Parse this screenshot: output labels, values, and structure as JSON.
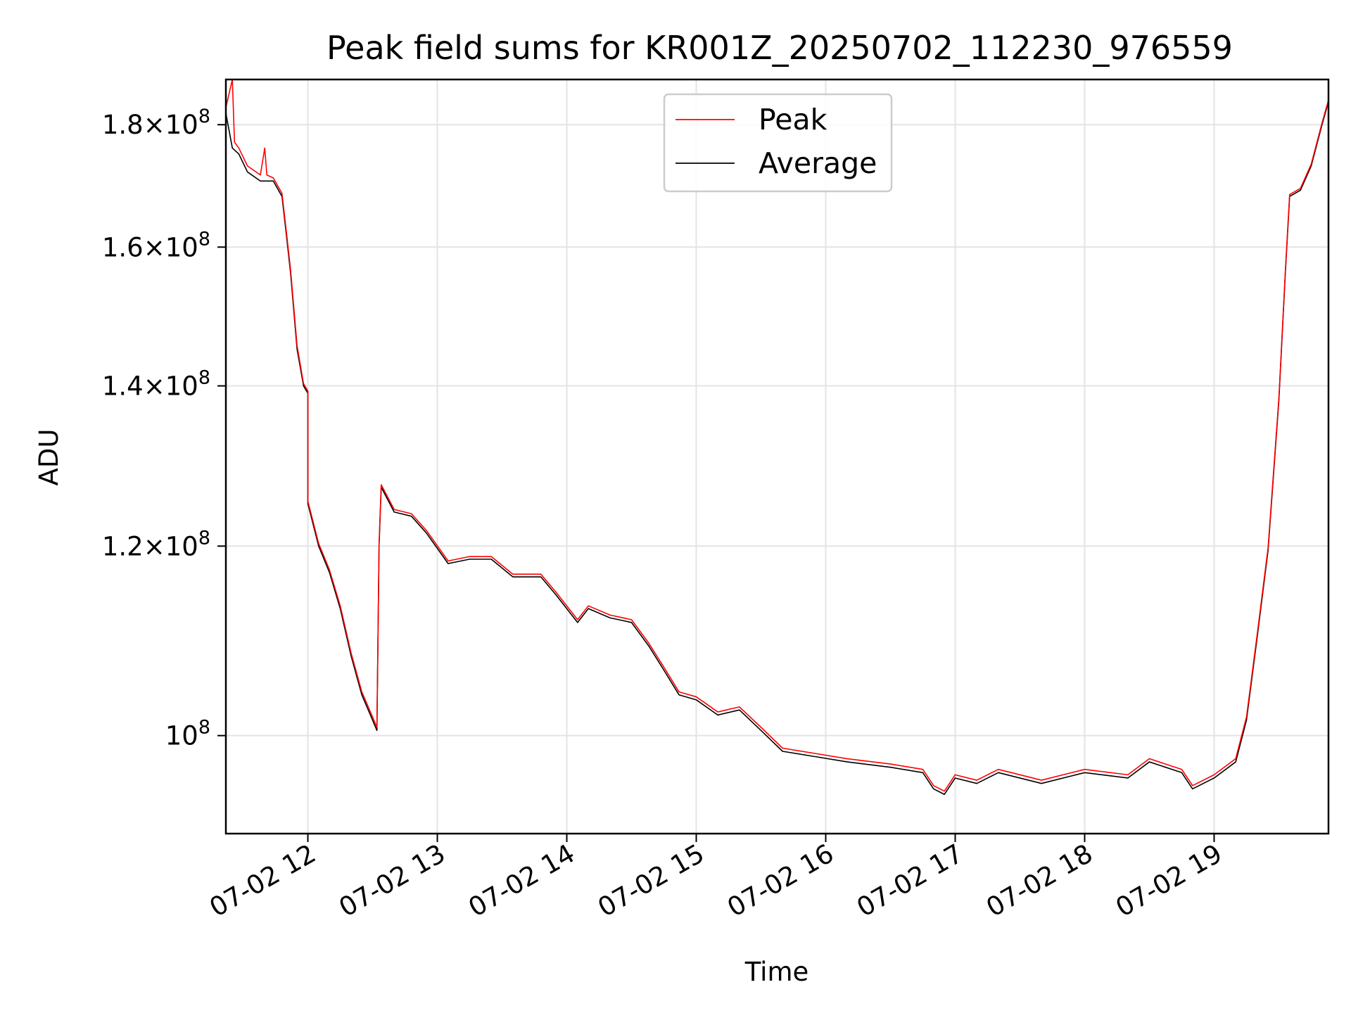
{
  "chart_data": {
    "type": "line",
    "title": "Peak field sums for KR001Z_20250702_112230_976559",
    "xlabel": "Time",
    "ylabel": "ADU",
    "yscale": "log",
    "xlim": [
      "2025-07-02 11:22",
      "2025-07-02 19:53"
    ],
    "ylim": [
      91000000,
      188000000
    ],
    "grid": true,
    "legend_position": "top-center",
    "x_ticks": [
      {
        "value": "2025-07-02 12:00",
        "label": "07-02 12"
      },
      {
        "value": "2025-07-02 13:00",
        "label": "07-02 13"
      },
      {
        "value": "2025-07-02 14:00",
        "label": "07-02 14"
      },
      {
        "value": "2025-07-02 15:00",
        "label": "07-02 15"
      },
      {
        "value": "2025-07-02 16:00",
        "label": "07-02 16"
      },
      {
        "value": "2025-07-02 17:00",
        "label": "07-02 17"
      },
      {
        "value": "2025-07-02 18:00",
        "label": "07-02 18"
      },
      {
        "value": "2025-07-02 19:00",
        "label": "07-02 19"
      }
    ],
    "y_ticks": [
      {
        "value": 100000000,
        "mantissa": "",
        "exponent": "8"
      },
      {
        "value": 120000000,
        "mantissa": "1.2",
        "exponent": "8"
      },
      {
        "value": 140000000,
        "mantissa": "1.4",
        "exponent": "8"
      },
      {
        "value": 160000000,
        "mantissa": "1.6",
        "exponent": "8"
      },
      {
        "value": 180000000,
        "mantissa": "1.8",
        "exponent": "8"
      }
    ],
    "series": [
      {
        "name": "Average",
        "color": "#000000",
        "points": [
          [
            "2025-07-02 11:22",
            182000000
          ],
          [
            "2025-07-02 11:25",
            176000000
          ],
          [
            "2025-07-02 11:28",
            175000000
          ],
          [
            "2025-07-02 11:32",
            172000000
          ],
          [
            "2025-07-02 11:38",
            170500000
          ],
          [
            "2025-07-02 11:44",
            170500000
          ],
          [
            "2025-07-02 11:48",
            168000000
          ],
          [
            "2025-07-02 11:50",
            162000000
          ],
          [
            "2025-07-02 11:52",
            156000000
          ],
          [
            "2025-07-02 11:55",
            145000000
          ],
          [
            "2025-07-02 11:58",
            140000000
          ],
          [
            "2025-07-02 12:00",
            139000000
          ],
          [
            "2025-07-02 12:00",
            125000000
          ],
          [
            "2025-07-02 12:05",
            120000000
          ],
          [
            "2025-07-02 12:10",
            117000000
          ],
          [
            "2025-07-02 12:15",
            113000000
          ],
          [
            "2025-07-02 12:20",
            108000000
          ],
          [
            "2025-07-02 12:25",
            104000000
          ],
          [
            "2025-07-02 12:30",
            101500000
          ],
          [
            "2025-07-02 12:32",
            100500000
          ],
          [
            "2025-07-02 12:33",
            120000000
          ],
          [
            "2025-07-02 12:34",
            127000000
          ],
          [
            "2025-07-02 12:40",
            124000000
          ],
          [
            "2025-07-02 12:48",
            123500000
          ],
          [
            "2025-07-02 12:55",
            121500000
          ],
          [
            "2025-07-02 13:05",
            118000000
          ],
          [
            "2025-07-02 13:15",
            118500000
          ],
          [
            "2025-07-02 13:25",
            118500000
          ],
          [
            "2025-07-02 13:35",
            116500000
          ],
          [
            "2025-07-02 13:48",
            116500000
          ],
          [
            "2025-07-02 13:55",
            114500000
          ],
          [
            "2025-07-02 14:05",
            111500000
          ],
          [
            "2025-07-02 14:10",
            113000000
          ],
          [
            "2025-07-02 14:20",
            112000000
          ],
          [
            "2025-07-02 14:30",
            111500000
          ],
          [
            "2025-07-02 14:38",
            109000000
          ],
          [
            "2025-07-02 14:45",
            106500000
          ],
          [
            "2025-07-02 14:52",
            104000000
          ],
          [
            "2025-07-02 15:00",
            103500000
          ],
          [
            "2025-07-02 15:10",
            102000000
          ],
          [
            "2025-07-02 15:20",
            102500000
          ],
          [
            "2025-07-02 15:30",
            100500000
          ],
          [
            "2025-07-02 15:40",
            98500000
          ],
          [
            "2025-07-02 15:55",
            98000000
          ],
          [
            "2025-07-02 16:10",
            97500000
          ],
          [
            "2025-07-02 16:30",
            97000000
          ],
          [
            "2025-07-02 16:45",
            96500000
          ],
          [
            "2025-07-02 16:50",
            95000000
          ],
          [
            "2025-07-02 16:55",
            94500000
          ],
          [
            "2025-07-02 17:00",
            96000000
          ],
          [
            "2025-07-02 17:10",
            95500000
          ],
          [
            "2025-07-02 17:20",
            96500000
          ],
          [
            "2025-07-02 17:40",
            95500000
          ],
          [
            "2025-07-02 18:00",
            96500000
          ],
          [
            "2025-07-02 18:20",
            96000000
          ],
          [
            "2025-07-02 18:30",
            97500000
          ],
          [
            "2025-07-02 18:45",
            96500000
          ],
          [
            "2025-07-02 18:50",
            95000000
          ],
          [
            "2025-07-02 19:00",
            96000000
          ],
          [
            "2025-07-02 19:10",
            97500000
          ],
          [
            "2025-07-02 19:15",
            101500000
          ],
          [
            "2025-07-02 19:20",
            110000000
          ],
          [
            "2025-07-02 19:25",
            119500000
          ],
          [
            "2025-07-02 19:30",
            138000000
          ],
          [
            "2025-07-02 19:33",
            156000000
          ],
          [
            "2025-07-02 19:35",
            168000000
          ],
          [
            "2025-07-02 19:40",
            169000000
          ],
          [
            "2025-07-02 19:45",
            173000000
          ],
          [
            "2025-07-02 19:50",
            180000000
          ],
          [
            "2025-07-02 19:53",
            184000000
          ]
        ]
      },
      {
        "name": "Peak",
        "color": "#ff0000",
        "points": [
          [
            "2025-07-02 11:22",
            183000000
          ],
          [
            "2025-07-02 11:25",
            188000000
          ],
          [
            "2025-07-02 11:26",
            177000000
          ],
          [
            "2025-07-02 11:28",
            176000000
          ],
          [
            "2025-07-02 11:32",
            173000000
          ],
          [
            "2025-07-02 11:38",
            171500000
          ],
          [
            "2025-07-02 11:40",
            176000000
          ],
          [
            "2025-07-02 11:41",
            171500000
          ],
          [
            "2025-07-02 11:44",
            171000000
          ],
          [
            "2025-07-02 11:48",
            168500000
          ],
          [
            "2025-07-02 11:50",
            162500000
          ],
          [
            "2025-07-02 11:52",
            156500000
          ],
          [
            "2025-07-02 11:55",
            145500000
          ],
          [
            "2025-07-02 11:58",
            140300000
          ],
          [
            "2025-07-02 12:00",
            139300000
          ],
          [
            "2025-07-02 12:00",
            125300000
          ],
          [
            "2025-07-02 12:05",
            120300000
          ],
          [
            "2025-07-02 12:10",
            117300000
          ],
          [
            "2025-07-02 12:15",
            113300000
          ],
          [
            "2025-07-02 12:20",
            108300000
          ],
          [
            "2025-07-02 12:25",
            104300000
          ],
          [
            "2025-07-02 12:30",
            101800000
          ],
          [
            "2025-07-02 12:32",
            100800000
          ],
          [
            "2025-07-02 12:33",
            120300000
          ],
          [
            "2025-07-02 12:34",
            127300000
          ],
          [
            "2025-07-02 12:40",
            124300000
          ],
          [
            "2025-07-02 12:48",
            123800000
          ],
          [
            "2025-07-02 12:55",
            121800000
          ],
          [
            "2025-07-02 13:05",
            118300000
          ],
          [
            "2025-07-02 13:15",
            118800000
          ],
          [
            "2025-07-02 13:25",
            118800000
          ],
          [
            "2025-07-02 13:35",
            116800000
          ],
          [
            "2025-07-02 13:48",
            116800000
          ],
          [
            "2025-07-02 13:55",
            114800000
          ],
          [
            "2025-07-02 14:05",
            111800000
          ],
          [
            "2025-07-02 14:10",
            113300000
          ],
          [
            "2025-07-02 14:20",
            112300000
          ],
          [
            "2025-07-02 14:30",
            111800000
          ],
          [
            "2025-07-02 14:38",
            109300000
          ],
          [
            "2025-07-02 14:45",
            106800000
          ],
          [
            "2025-07-02 14:52",
            104300000
          ],
          [
            "2025-07-02 15:00",
            103800000
          ],
          [
            "2025-07-02 15:10",
            102300000
          ],
          [
            "2025-07-02 15:20",
            102800000
          ],
          [
            "2025-07-02 15:30",
            100800000
          ],
          [
            "2025-07-02 15:40",
            98800000
          ],
          [
            "2025-07-02 15:55",
            98300000
          ],
          [
            "2025-07-02 16:10",
            97800000
          ],
          [
            "2025-07-02 16:30",
            97300000
          ],
          [
            "2025-07-02 16:45",
            96800000
          ],
          [
            "2025-07-02 16:50",
            95300000
          ],
          [
            "2025-07-02 16:55",
            94800000
          ],
          [
            "2025-07-02 17:00",
            96300000
          ],
          [
            "2025-07-02 17:10",
            95800000
          ],
          [
            "2025-07-02 17:20",
            96800000
          ],
          [
            "2025-07-02 17:40",
            95800000
          ],
          [
            "2025-07-02 18:00",
            96800000
          ],
          [
            "2025-07-02 18:20",
            96300000
          ],
          [
            "2025-07-02 18:30",
            97800000
          ],
          [
            "2025-07-02 18:45",
            96800000
          ],
          [
            "2025-07-02 18:50",
            95300000
          ],
          [
            "2025-07-02 19:00",
            96300000
          ],
          [
            "2025-07-02 19:10",
            97800000
          ],
          [
            "2025-07-02 19:15",
            101800000
          ],
          [
            "2025-07-02 19:20",
            110300000
          ],
          [
            "2025-07-02 19:25",
            119800000
          ],
          [
            "2025-07-02 19:30",
            138300000
          ],
          [
            "2025-07-02 19:33",
            156300000
          ],
          [
            "2025-07-02 19:35",
            168300000
          ],
          [
            "2025-07-02 19:40",
            169300000
          ],
          [
            "2025-07-02 19:45",
            173300000
          ],
          [
            "2025-07-02 19:50",
            180300000
          ],
          [
            "2025-07-02 19:53",
            184300000
          ]
        ]
      }
    ],
    "legend": [
      {
        "name": "Peak",
        "color": "#ff0000"
      },
      {
        "name": "Average",
        "color": "#000000"
      }
    ]
  }
}
